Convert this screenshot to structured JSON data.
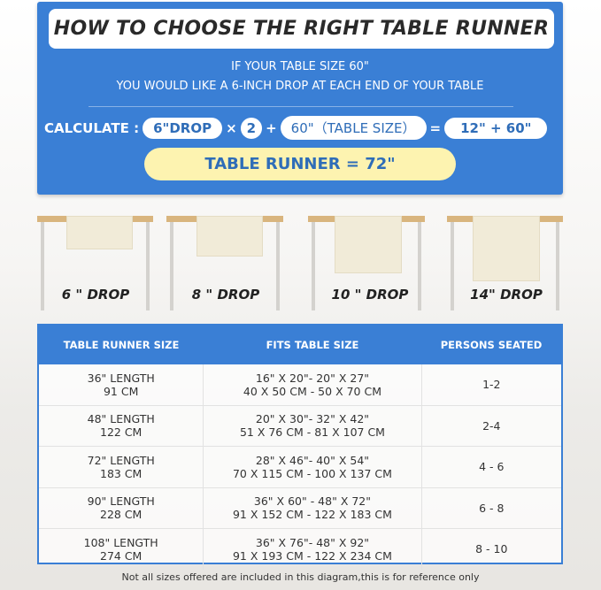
{
  "header": {
    "title": "HOW TO CHOOSE THE RIGHT TABLE RUNNER",
    "line1": "IF YOUR TABLE SIZE 60\"",
    "line2": "YOU WOULD LIKE A 6-INCH DROP AT EACH END OF YOUR TABLE"
  },
  "calc": {
    "label": "CALCULATE :",
    "drop": "6\"DROP",
    "times": "×",
    "two": "2",
    "plus": "+",
    "table": "60\"（TABLE SIZE）",
    "equals": "=",
    "sum": "12\" + 60\"",
    "result": "TABLE RUNNER = 72\""
  },
  "drops": [
    "6 \" DROP",
    "8 \" DROP",
    "10 \" DROP",
    "14\" DROP"
  ],
  "table": {
    "headers": [
      "TABLE RUNNER SIZE",
      "FITS TABLE SIZE",
      "PERSONS SEATED"
    ],
    "rows": [
      {
        "len": "36\" LENGTH",
        "cm": "91 CM",
        "fit_in": "16\" X 20\"- 20\" X 27\"",
        "fit_cm": "40 X 50 CM - 50 X 70 CM",
        "persons": "1-2"
      },
      {
        "len": "48\" LENGTH",
        "cm": "122 CM",
        "fit_in": "20\" X 30\"- 32\" X 42\"",
        "fit_cm": "51 X 76 CM - 81 X 107 CM",
        "persons": "2-4"
      },
      {
        "len": "72\" LENGTH",
        "cm": "183 CM",
        "fit_in": "28\" X 46\"- 40\" X 54\"",
        "fit_cm": "70 X 115 CM - 100 X 137 CM",
        "persons": "4 - 6"
      },
      {
        "len": "90\" LENGTH",
        "cm": "228 CM",
        "fit_in": "36\" X 60\" - 48\" X 72\"",
        "fit_cm": "91 X 152 CM - 122 X 183 CM",
        "persons": "6 - 8"
      },
      {
        "len": "108\" LENGTH",
        "cm": "274 CM",
        "fit_in": "36\" X 76\"- 48\" X 92\"",
        "fit_cm": "91 X 193 CM - 122 X 234 CM",
        "persons": "8 - 10"
      }
    ]
  },
  "note": "Not all sizes offered are included in this diagram,this is for reference only",
  "colors": {
    "blue": "#3a7fd5",
    "yellow": "#fdf3b0",
    "wood": "#d9b57e"
  }
}
